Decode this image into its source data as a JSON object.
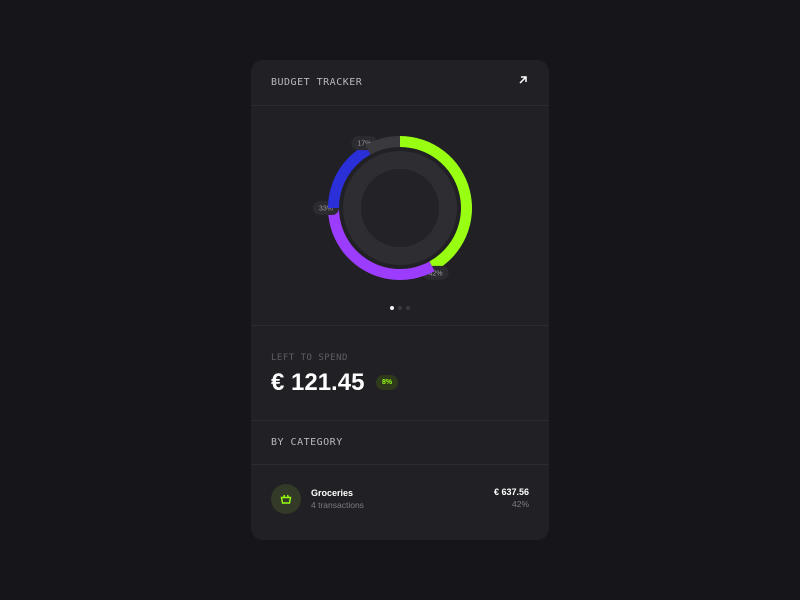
{
  "header": {
    "title": "BUDGET TRACKER",
    "expand_icon": "arrow-up-right-icon"
  },
  "chart_data": {
    "type": "pie",
    "style": "donut",
    "segments": [
      {
        "value": 42,
        "label": "42%",
        "color": "#98ff12"
      },
      {
        "value": 33,
        "label": "33%",
        "color": "#9b3cff"
      },
      {
        "value": 17,
        "label": "17%",
        "color": "#2a2fd8"
      },
      {
        "value": 8,
        "label": "",
        "color": "#3a393e"
      }
    ]
  },
  "pager": {
    "pages": 3,
    "active": 0
  },
  "spend": {
    "label": "LEFT TO SPEND",
    "amount": "€ 121.45",
    "badge": "8%",
    "badge_color": "#98ff12"
  },
  "category": {
    "label": "BY CATEGORY",
    "items": [
      {
        "name": "Groceries",
        "sub": "4 transactions",
        "amount": "€ 637.56",
        "percent": "42%",
        "icon": "basket-icon"
      }
    ]
  }
}
